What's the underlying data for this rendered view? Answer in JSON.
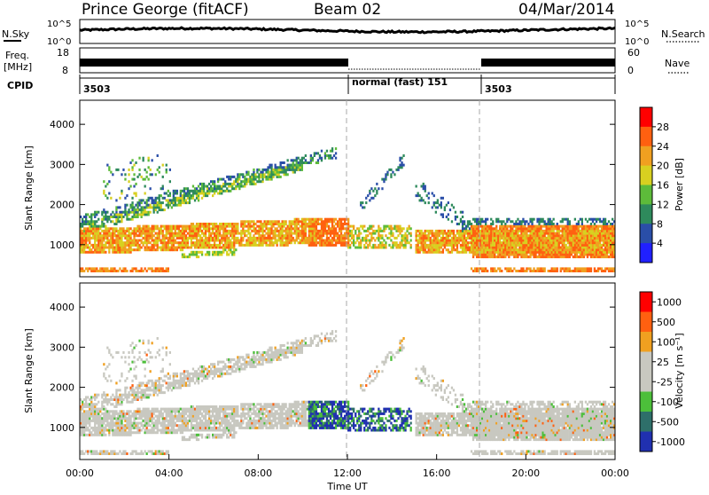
{
  "header": {
    "station": "Prince George (fitACF)",
    "beam": "Beam 02",
    "date": "04/Mar/2014"
  },
  "top_panels": {
    "nsky_label": "N.Sky",
    "nsky_ticks": [
      "10^5",
      "10^0"
    ],
    "nsearch_label": "N.Search",
    "nsearch_ticks": [
      "10^5",
      "10^0"
    ],
    "freq_label_line1": "Freq.",
    "freq_label_line2": "[MHz]",
    "freq_ticks": [
      "18",
      "8"
    ],
    "nave_label": "Nave",
    "nave_ticks": [
      "60",
      "0"
    ],
    "cpid_label": "CPID",
    "cpid_segments": [
      {
        "start": 0,
        "label": "3503"
      },
      {
        "start": 12,
        "label": "normal (fast) 151"
      },
      {
        "start": 18,
        "label": "3503"
      }
    ]
  },
  "chart_data": [
    {
      "type": "heatmap",
      "name": "power",
      "ylabel": "Slant Range [km]",
      "yticks": [
        "1000",
        "2000",
        "3000",
        "4000"
      ],
      "ylim": [
        200,
        4600
      ],
      "xlim": [
        0,
        24
      ],
      "colorbar_label": "Power [dB]",
      "colorbar_ticks": [
        "4",
        "8",
        "12",
        "16",
        "20",
        "24",
        "28"
      ],
      "colors": [
        "#2020ff",
        "#2a4ea8",
        "#2e8a5c",
        "#5dbb3a",
        "#d8d020",
        "#f0a020",
        "#ff6010",
        "#ff0000"
      ]
    },
    {
      "type": "heatmap",
      "name": "velocity",
      "ylabel": "Slant Range [km]",
      "yticks": [
        "1000",
        "2000",
        "3000",
        "4000"
      ],
      "ylim": [
        200,
        4600
      ],
      "xlim": [
        0,
        24
      ],
      "xlabel": "Time UT",
      "xticks": [
        "00:00",
        "04:00",
        "08:00",
        "12:00",
        "16:00",
        "20:00",
        "00:00"
      ],
      "colorbar_label": "Velocity [m s⁻¹]",
      "colorbar_ticks": [
        "1000",
        "500",
        "100",
        "25",
        "-25",
        "-100",
        "-500",
        "-1000"
      ],
      "colors": [
        "#2030b0",
        "#2e6f6a",
        "#4cbf3a",
        "#c8c8c0",
        "#c8c8c0",
        "#f0a020",
        "#ff6010",
        "#ff0000"
      ]
    }
  ]
}
